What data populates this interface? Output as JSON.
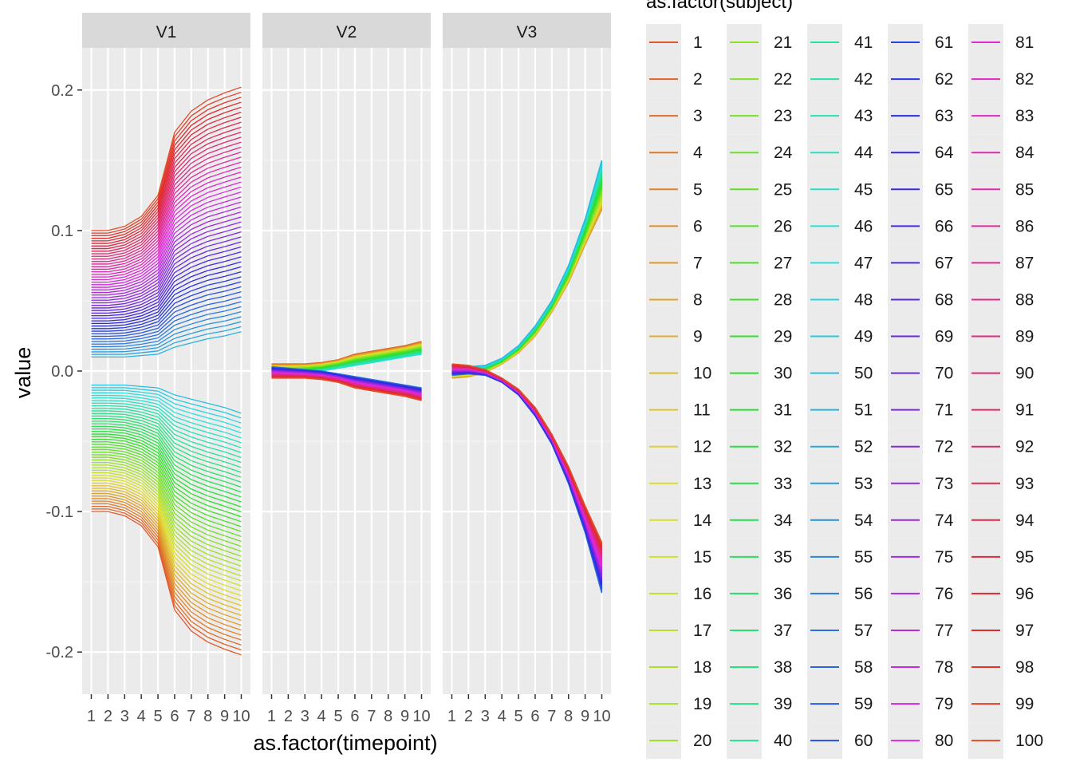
{
  "chart_data": {
    "type": "line",
    "facet_by": "variable",
    "facets": [
      "V1",
      "V2",
      "V3"
    ],
    "x": [
      1,
      2,
      3,
      4,
      5,
      6,
      7,
      8,
      9,
      10
    ],
    "x_tick_labels": [
      "1",
      "2",
      "3",
      "4",
      "5",
      "6",
      "7",
      "8",
      "9",
      "10"
    ],
    "xlabel": "as.factor(timepoint)",
    "ylabel": "value",
    "ylim": [
      -0.23,
      0.23
    ],
    "y_ticks": [
      0.2,
      0.1,
      0.0,
      -0.1,
      -0.2
    ],
    "y_tick_labels": [
      "0.2",
      "0.1",
      "0.0",
      "-0.1",
      "-0.2"
    ],
    "grid": true,
    "legend": {
      "title": "as.factor(subject)",
      "placement": "right",
      "columns": 5,
      "entries": [
        "1",
        "2",
        "3",
        "4",
        "5",
        "6",
        "7",
        "8",
        "9",
        "10",
        "11",
        "12",
        "13",
        "14",
        "15",
        "16",
        "17",
        "18",
        "19",
        "20",
        "21",
        "22",
        "23",
        "24",
        "25",
        "26",
        "27",
        "28",
        "29",
        "30",
        "31",
        "32",
        "33",
        "34",
        "35",
        "36",
        "37",
        "38",
        "39",
        "40",
        "41",
        "42",
        "43",
        "44",
        "45",
        "46",
        "47",
        "48",
        "49",
        "50",
        "51",
        "52",
        "53",
        "54",
        "55",
        "56",
        "57",
        "58",
        "59",
        "60",
        "61",
        "62",
        "63",
        "64",
        "65",
        "66",
        "67",
        "68",
        "69",
        "70",
        "71",
        "72",
        "73",
        "74",
        "75",
        "76",
        "77",
        "78",
        "79",
        "80",
        "81",
        "82",
        "83",
        "84",
        "85",
        "86",
        "87",
        "88",
        "89",
        "90",
        "91",
        "92",
        "93",
        "94",
        "95",
        "96",
        "97",
        "98",
        "99",
        "100"
      ]
    },
    "series_count": 100,
    "color_scale": "hue",
    "approx_envelopes": {
      "V1": {
        "positive_group_subject_1_top": [
          0.1,
          0.1,
          0.103,
          0.11,
          0.125,
          0.17,
          0.185,
          0.193,
          0.198,
          0.202
        ],
        "positive_group_subject_50_bottom": [
          0.01,
          0.01,
          0.01,
          0.011,
          0.012,
          0.017,
          0.02,
          0.023,
          0.025,
          0.028
        ],
        "negative_group_subject_51_top": [
          -0.01,
          -0.01,
          -0.01,
          -0.011,
          -0.012,
          -0.017,
          -0.02,
          -0.023,
          -0.026,
          -0.03
        ],
        "negative_group_subject_100_bottom": [
          -0.1,
          -0.1,
          -0.103,
          -0.11,
          -0.125,
          -0.17,
          -0.185,
          -0.193,
          -0.198,
          -0.202
        ]
      },
      "V2": {
        "upper_band_max": [
          0.005,
          0.005,
          0.005,
          0.006,
          0.008,
          0.012,
          0.014,
          0.016,
          0.018,
          0.021
        ],
        "upper_band_min": [
          -0.002,
          -0.002,
          -0.001,
          0.0,
          0.002,
          0.004,
          0.006,
          0.008,
          0.01,
          0.012
        ],
        "lower_band_max": [
          0.003,
          0.002,
          0.001,
          0.0,
          -0.002,
          -0.004,
          -0.006,
          -0.008,
          -0.01,
          -0.012
        ],
        "lower_band_min": [
          -0.005,
          -0.005,
          -0.005,
          -0.006,
          -0.008,
          -0.012,
          -0.014,
          -0.016,
          -0.018,
          -0.021
        ]
      },
      "V3": {
        "rising_band_max": [
          0.004,
          0.003,
          0.004,
          0.009,
          0.018,
          0.032,
          0.05,
          0.075,
          0.108,
          0.15
        ],
        "rising_band_min": [
          -0.005,
          -0.004,
          -0.001,
          0.005,
          0.013,
          0.025,
          0.042,
          0.063,
          0.09,
          0.115
        ],
        "falling_band_max": [
          0.005,
          0.004,
          0.001,
          -0.005,
          -0.013,
          -0.026,
          -0.045,
          -0.068,
          -0.096,
          -0.122
        ],
        "falling_band_min": [
          -0.003,
          -0.002,
          -0.003,
          -0.008,
          -0.017,
          -0.032,
          -0.052,
          -0.08,
          -0.115,
          -0.158
        ]
      }
    }
  }
}
